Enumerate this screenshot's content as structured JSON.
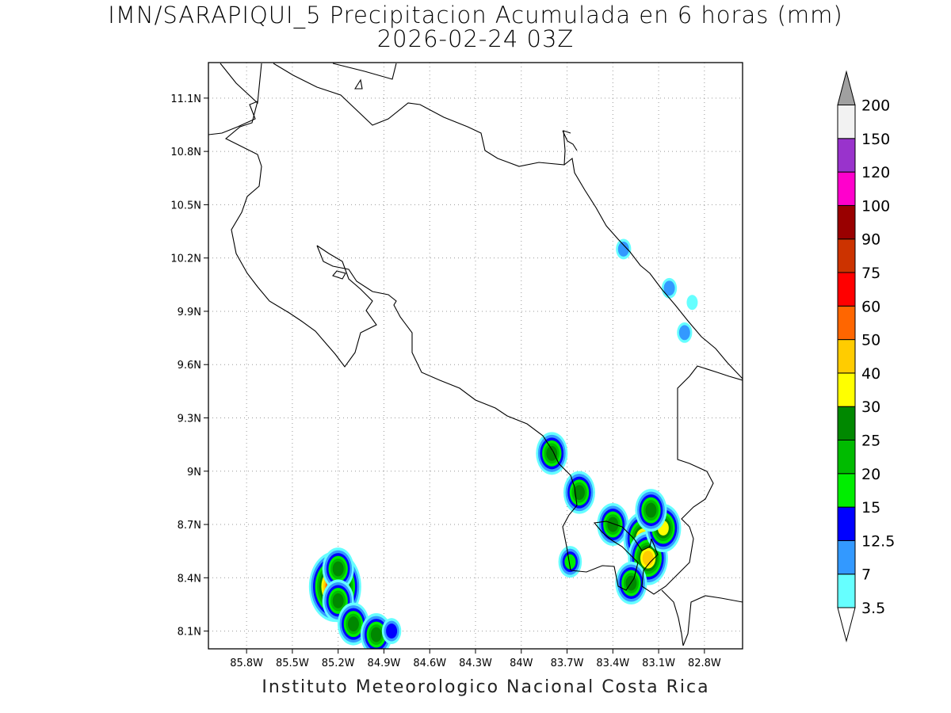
{
  "title": {
    "line1": "IMN/SARAPIQUI_5 Precipitacion Acumulada en 6 horas (mm)",
    "line2": "2026-02-24 03Z"
  },
  "credit": "Instituto Meteorologico Nacional Costa Rica",
  "map": {
    "lon_range": [
      -86.05,
      -82.55
    ],
    "lat_range": [
      8.0,
      11.3
    ],
    "x_tick_labels": [
      "85.8W",
      "85.5W",
      "85.2W",
      "84.9W",
      "84.6W",
      "84.3W",
      "84W",
      "83.7W",
      "83.4W",
      "83.1W",
      "82.8W"
    ],
    "x_tick_values": [
      -85.8,
      -85.5,
      -85.2,
      -84.9,
      -84.6,
      -84.3,
      -84.0,
      -83.7,
      -83.4,
      -83.1,
      -82.8
    ],
    "y_tick_labels": [
      "11.1N",
      "10.8N",
      "10.5N",
      "10.2N",
      "9.9N",
      "9.6N",
      "9.3N",
      "9N",
      "8.7N",
      "8.4N",
      "8.1N"
    ],
    "y_tick_values": [
      11.1,
      10.8,
      10.5,
      10.2,
      9.9,
      9.6,
      9.3,
      9.0,
      8.7,
      8.4,
      8.1
    ],
    "grid": "dotted"
  },
  "colorbar": {
    "labels": [
      "3.5",
      "7",
      "12.5",
      "15",
      "20",
      "25",
      "30",
      "40",
      "50",
      "60",
      "75",
      "90",
      "100",
      "120",
      "150",
      "200"
    ],
    "colors": [
      "#66ffff",
      "#3399ff",
      "#0000ff",
      "#00ee00",
      "#00bb00",
      "#008800",
      "#ffff00",
      "#ffcc00",
      "#ff6600",
      "#ff0000",
      "#cc3300",
      "#990000",
      "#ff00cc",
      "#9933cc",
      "#f2f2f2",
      "#a0a0a0"
    ]
  },
  "precip_cells": [
    {
      "lon": -85.22,
      "lat": 8.35,
      "peak_mm": 75
    },
    {
      "lon": -85.2,
      "lat": 8.45,
      "peak_mm": 25
    },
    {
      "lon": -85.2,
      "lat": 8.27,
      "peak_mm": 25
    },
    {
      "lon": -85.1,
      "lat": 8.14,
      "peak_mm": 25
    },
    {
      "lon": -84.95,
      "lat": 8.08,
      "peak_mm": 25
    },
    {
      "lon": -84.85,
      "lat": 8.1,
      "peak_mm": 12.5
    },
    {
      "lon": -83.8,
      "lat": 9.1,
      "peak_mm": 25
    },
    {
      "lon": -83.62,
      "lat": 8.88,
      "peak_mm": 25
    },
    {
      "lon": -83.4,
      "lat": 8.7,
      "peak_mm": 25
    },
    {
      "lon": -83.2,
      "lat": 8.62,
      "peak_mm": 40
    },
    {
      "lon": -83.17,
      "lat": 8.51,
      "peak_mm": 40
    },
    {
      "lon": -83.07,
      "lat": 8.68,
      "peak_mm": 30
    },
    {
      "lon": -83.15,
      "lat": 8.78,
      "peak_mm": 25
    },
    {
      "lon": -83.28,
      "lat": 8.37,
      "peak_mm": 25
    },
    {
      "lon": -83.68,
      "lat": 8.49,
      "peak_mm": 15
    },
    {
      "lon": -83.33,
      "lat": 10.25,
      "peak_mm": 7
    },
    {
      "lon": -82.93,
      "lat": 9.78,
      "peak_mm": 7
    },
    {
      "lon": -83.03,
      "lat": 10.03,
      "peak_mm": 7
    },
    {
      "lon": -82.88,
      "lat": 9.95,
      "peak_mm": 3.5
    }
  ]
}
